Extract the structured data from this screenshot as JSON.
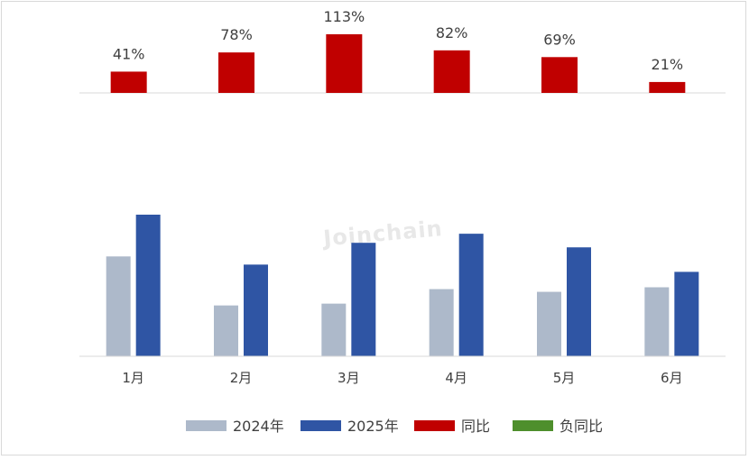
{
  "chart_data": {
    "type": "bar",
    "categories": [
      "1月",
      "2月",
      "3月",
      "4月",
      "5月",
      "6月"
    ],
    "series": [
      {
        "name": "2024年",
        "color": "#adb9ca",
        "values": [
          110,
          56,
          58,
          74,
          71,
          76
        ]
      },
      {
        "name": "2025年",
        "color": "#2f55a4",
        "values": [
          156,
          101,
          125,
          135,
          120,
          93
        ]
      }
    ],
    "yoy": {
      "name": "同比",
      "color": "#c00000",
      "values": [
        41,
        78,
        113,
        82,
        69,
        21
      ],
      "labels": [
        "41%",
        "78%",
        "113%",
        "82%",
        "69%",
        "21%"
      ]
    },
    "negative_yoy": {
      "name": "负同比",
      "color": "#4e8f2c"
    },
    "grid": false,
    "legend_position": "bottom"
  },
  "watermark": "Joinchain"
}
